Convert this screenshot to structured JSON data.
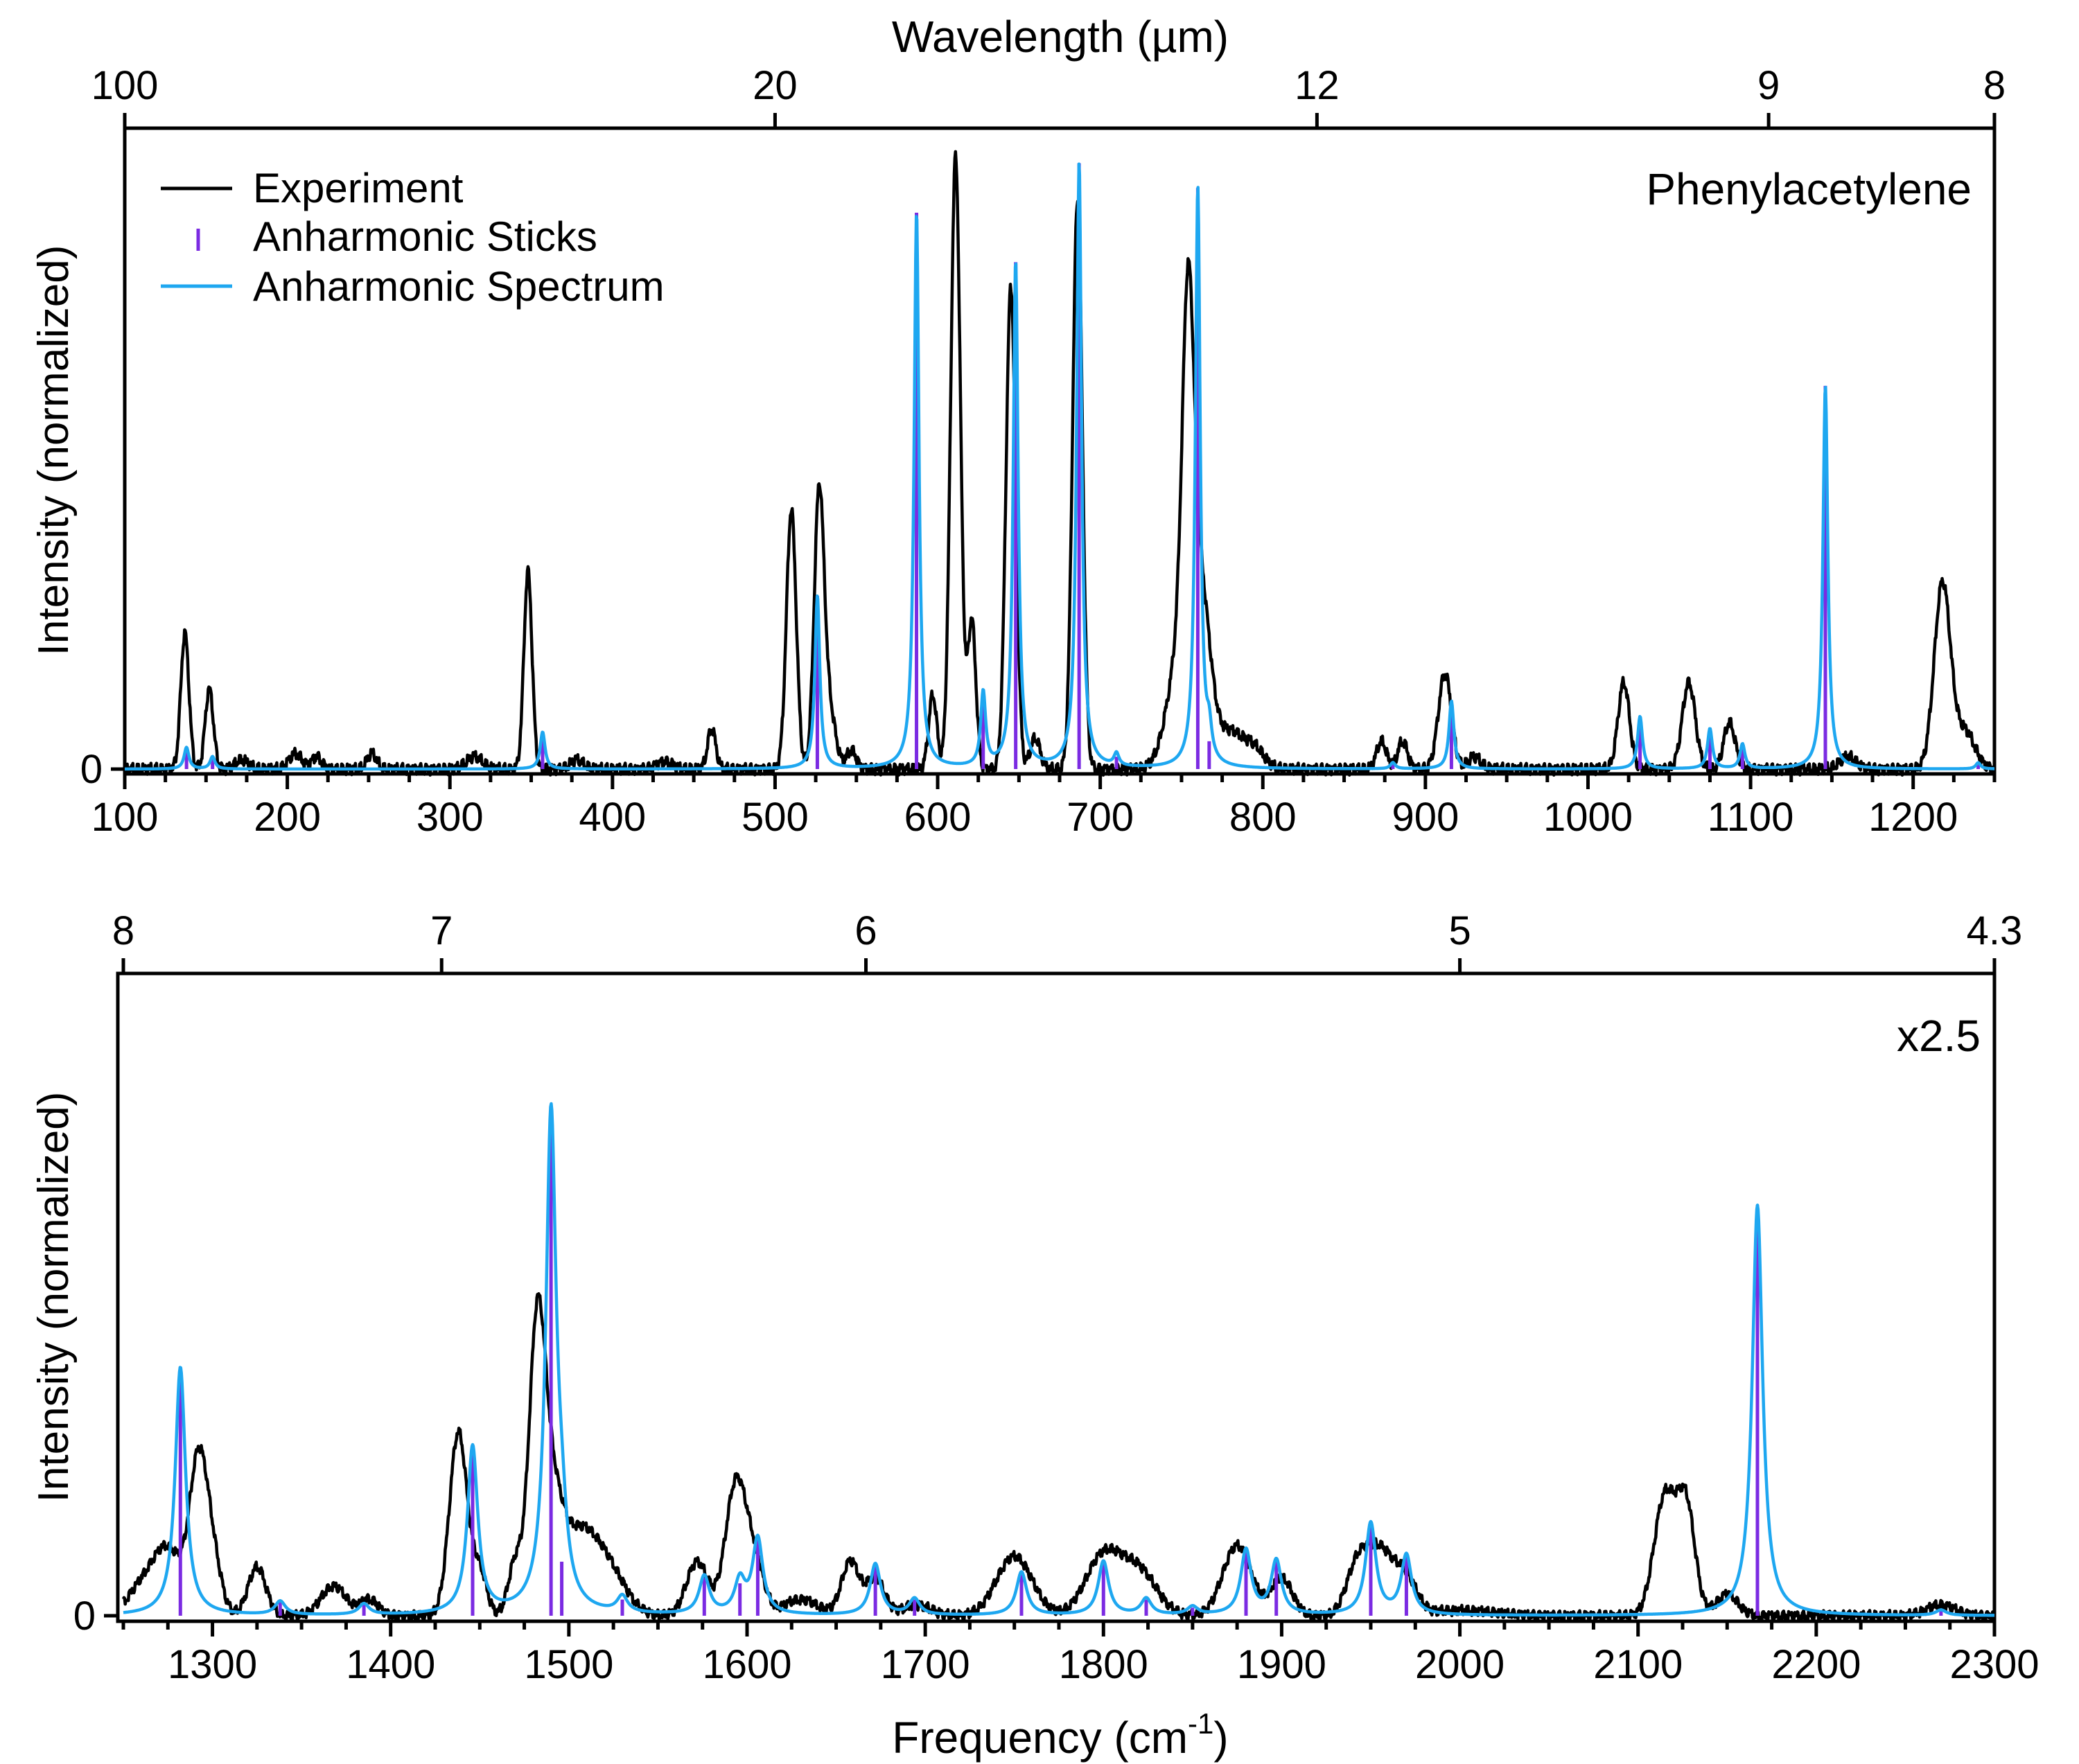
{
  "chart_data": [
    {
      "type": "line",
      "panel": "top",
      "xlabel": "",
      "ylabel": "Intensity (normalized)",
      "top_axis_label": "Wavelength (µm)",
      "annotation": "Phenylacetylene",
      "xlim": [
        100,
        1250
      ],
      "ylim": [
        0,
        1.02
      ],
      "xticks": [
        100,
        200,
        300,
        400,
        500,
        600,
        700,
        800,
        900,
        1000,
        1100,
        1200
      ],
      "xtick_labels": [
        "100",
        "200",
        "300",
        "400",
        "500",
        "600",
        "700",
        "800",
        "900",
        "1000",
        "1100",
        "1200"
      ],
      "ytick_labels": [
        "0"
      ],
      "top_ticks": [
        {
          "label": "100",
          "value": 100
        },
        {
          "label": "20",
          "value": 500
        },
        {
          "label": "12",
          "value": 833.3
        },
        {
          "label": "9",
          "value": 1111.1
        },
        {
          "label": "8",
          "value": 1250
        }
      ],
      "legend": [
        {
          "label": "Experiment",
          "color": "#000000",
          "style": "line"
        },
        {
          "label": "Anharmonic Sticks",
          "color": "#7b2be2",
          "style": "stick"
        },
        {
          "label": "Anharmonic Spectrum",
          "color": "#1ea7f0",
          "style": "line"
        }
      ],
      "experiment_peaks": [
        [
          137,
          0.22,
          2.5
        ],
        [
          152,
          0.13,
          2.5
        ],
        [
          172,
          0.015,
          4
        ],
        [
          205,
          0.025,
          4
        ],
        [
          218,
          0.02,
          3
        ],
        [
          252,
          0.025,
          3
        ],
        [
          315,
          0.02,
          5
        ],
        [
          348,
          0.32,
          2.5
        ],
        [
          378,
          0.015,
          4
        ],
        [
          432,
          0.012,
          5
        ],
        [
          461,
          0.065,
          2.5
        ],
        [
          510,
          0.42,
          3
        ],
        [
          527,
          0.43,
          3
        ],
        [
          533,
          0.1,
          4
        ],
        [
          547,
          0.03,
          3
        ],
        [
          597,
          0.12,
          2.5
        ],
        [
          611,
          0.99,
          3
        ],
        [
          621,
          0.24,
          2.5
        ],
        [
          645,
          0.78,
          3
        ],
        [
          660,
          0.05,
          3
        ],
        [
          686,
          0.92,
          3
        ],
        [
          750,
          0.2,
          8
        ],
        [
          754,
          0.54,
          3.5
        ],
        [
          762,
          0.25,
          6
        ],
        [
          780,
          0.06,
          8
        ],
        [
          795,
          0.03,
          6
        ],
        [
          873,
          0.045,
          3
        ],
        [
          886,
          0.045,
          3
        ],
        [
          912,
          0.155,
          4
        ],
        [
          930,
          0.02,
          4
        ],
        [
          1022,
          0.14,
          3.5
        ],
        [
          1062,
          0.14,
          4
        ],
        [
          1087,
          0.075,
          3.5
        ],
        [
          1160,
          0.02,
          5
        ],
        [
          1218,
          0.3,
          5
        ],
        [
          1232,
          0.06,
          6
        ]
      ],
      "sticks": [
        [
          138,
          0.035
        ],
        [
          154,
          0.02
        ],
        [
          357,
          0.06
        ],
        [
          526,
          0.28
        ],
        [
          587,
          0.9
        ],
        [
          628,
          0.12
        ],
        [
          648,
          0.82
        ],
        [
          687,
          0.98
        ],
        [
          710,
          0.02
        ],
        [
          760,
          0.94
        ],
        [
          767,
          0.045
        ],
        [
          880,
          0.01
        ],
        [
          916,
          0.11
        ],
        [
          1032,
          0.085
        ],
        [
          1075,
          0.065
        ],
        [
          1095,
          0.04
        ],
        [
          1146,
          0.62
        ],
        [
          1240,
          0.01
        ]
      ],
      "spectrum_width": 1.8
    },
    {
      "type": "line",
      "panel": "bottom",
      "xlabel": "Frequency (cm",
      "xlabel_sup": "-1",
      "xlabel_end": ")",
      "ylabel": "Intensity (normalized)",
      "annotation": "x2.5",
      "xlim": [
        1250,
        2300
      ],
      "ylim": [
        0,
        1.17
      ],
      "xticks": [
        1300,
        1400,
        1500,
        1600,
        1700,
        1800,
        1900,
        2000,
        2100,
        2200,
        2300
      ],
      "xtick_labels": [
        "1300",
        "1400",
        "1500",
        "1600",
        "1700",
        "1800",
        "1900",
        "2000",
        "2100",
        "2200",
        "2300"
      ],
      "ytick_labels": [
        "0"
      ],
      "top_ticks": [
        {
          "label": "8",
          "value": 1250
        },
        {
          "label": "7",
          "value": 1428.6
        },
        {
          "label": "6",
          "value": 1666.7
        },
        {
          "label": "5",
          "value": 2000
        },
        {
          "label": "4.3",
          "value": 2300
        }
      ],
      "experiment_peaks": [
        [
          1260,
          0.05,
          8
        ],
        [
          1275,
          0.12,
          8
        ],
        [
          1292,
          0.27,
          5
        ],
        [
          1300,
          0.1,
          5
        ],
        [
          1325,
          0.09,
          5
        ],
        [
          1368,
          0.055,
          7
        ],
        [
          1388,
          0.03,
          5
        ],
        [
          1438,
          0.34,
          5
        ],
        [
          1450,
          0.08,
          4
        ],
        [
          1470,
          0.1,
          4
        ],
        [
          1482,
          0.49,
          4.5
        ],
        [
          1490,
          0.2,
          6
        ],
        [
          1505,
          0.14,
          10
        ],
        [
          1522,
          0.08,
          10
        ],
        [
          1572,
          0.1,
          6
        ],
        [
          1594,
          0.25,
          6
        ],
        [
          1605,
          0.08,
          5
        ],
        [
          1630,
          0.03,
          10
        ],
        [
          1658,
          0.1,
          5
        ],
        [
          1672,
          0.07,
          5
        ],
        [
          1695,
          0.02,
          8
        ],
        [
          1750,
          0.11,
          10
        ],
        [
          1800,
          0.11,
          10
        ],
        [
          1820,
          0.08,
          10
        ],
        [
          1875,
          0.13,
          8
        ],
        [
          1900,
          0.07,
          6
        ],
        [
          1942,
          0.08,
          6
        ],
        [
          1955,
          0.12,
          8
        ],
        [
          1970,
          0.06,
          6
        ],
        [
          2000,
          0.01,
          20
        ],
        [
          2115,
          0.22,
          6
        ],
        [
          2127,
          0.2,
          5
        ],
        [
          2150,
          0.04,
          6
        ],
        [
          2270,
          0.02,
          8
        ]
      ],
      "sticks": [
        [
          1282,
          0.46
        ],
        [
          1338,
          0.025
        ],
        [
          1385,
          0.02
        ],
        [
          1446,
          0.31
        ],
        [
          1490,
          0.92
        ],
        [
          1496,
          0.1
        ],
        [
          1530,
          0.03
        ],
        [
          1576,
          0.07
        ],
        [
          1596,
          0.06
        ],
        [
          1606,
          0.14
        ],
        [
          1672,
          0.095
        ],
        [
          1694,
          0.03
        ],
        [
          1754,
          0.08
        ],
        [
          1800,
          0.1
        ],
        [
          1824,
          0.03
        ],
        [
          1850,
          0.015
        ],
        [
          1880,
          0.12
        ],
        [
          1897,
          0.1
        ],
        [
          1950,
          0.17
        ],
        [
          1970,
          0.11
        ],
        [
          2167,
          0.76
        ],
        [
          2270,
          0.01
        ]
      ],
      "spectrum_width": 3.5
    }
  ]
}
